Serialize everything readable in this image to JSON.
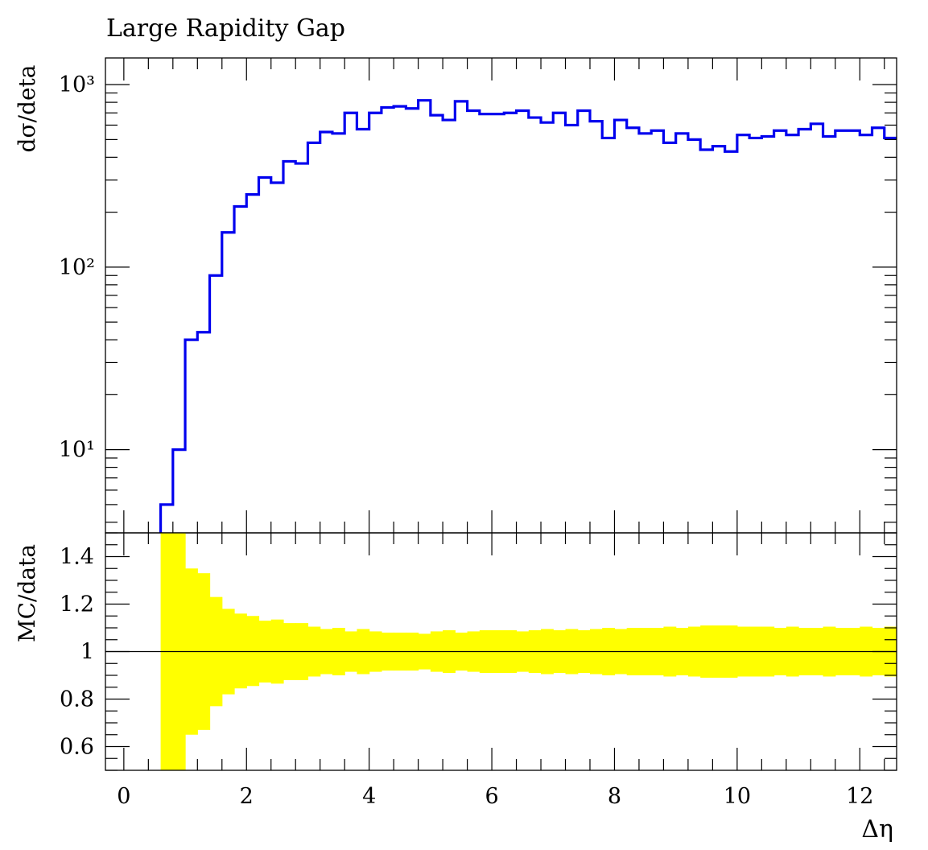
{
  "chart_data": {
    "type": "histogram",
    "title": "Large Rapidity Gap",
    "xlabel": "Δη",
    "ylabel": "dσ/deta",
    "ratio_ylabel": "MC/data",
    "x_ticks": [
      "0",
      "2",
      "4",
      "6",
      "8",
      "10",
      "12"
    ],
    "y_ticks": [
      "10¹",
      "10²",
      "10³"
    ],
    "ratio_ticks": [
      "0.6",
      "0.8",
      "1",
      "1.2",
      "1.4"
    ],
    "xlim": [
      -0.3,
      12.6
    ],
    "ylim": [
      3.5,
      1400
    ],
    "ratio_ylim": [
      0.5,
      1.5
    ],
    "yscale": "log",
    "bin_width": 0.2,
    "x_start": 0.6,
    "series": [
      {
        "color": "#0000ee",
        "values": [
          5,
          10,
          40,
          44,
          90,
          155,
          215,
          250,
          310,
          290,
          380,
          370,
          480,
          550,
          540,
          700,
          570,
          700,
          750,
          760,
          740,
          820,
          680,
          640,
          810,
          720,
          690,
          690,
          700,
          720,
          660,
          620,
          700,
          600,
          720,
          630,
          510,
          640,
          580,
          540,
          560,
          480,
          540,
          500,
          440,
          460,
          430,
          530,
          510,
          520,
          560,
          530,
          570,
          610,
          520,
          560,
          560,
          530,
          580,
          510
        ]
      }
    ],
    "ratio_band": {
      "color": "#ffff00",
      "upper": [
        1.5,
        1.5,
        1.35,
        1.33,
        1.23,
        1.18,
        1.16,
        1.15,
        1.13,
        1.135,
        1.12,
        1.12,
        1.105,
        1.095,
        1.1,
        1.085,
        1.095,
        1.085,
        1.08,
        1.08,
        1.08,
        1.075,
        1.085,
        1.09,
        1.08,
        1.085,
        1.09,
        1.09,
        1.09,
        1.085,
        1.09,
        1.095,
        1.09,
        1.095,
        1.09,
        1.095,
        1.1,
        1.095,
        1.1,
        1.1,
        1.1,
        1.105,
        1.1,
        1.105,
        1.11,
        1.11,
        1.11,
        1.105,
        1.105,
        1.105,
        1.1,
        1.105,
        1.1,
        1.1,
        1.105,
        1.1,
        1.1,
        1.105,
        1.1,
        1.105
      ],
      "lower": [
        0.5,
        0.5,
        0.65,
        0.67,
        0.77,
        0.82,
        0.845,
        0.855,
        0.87,
        0.865,
        0.88,
        0.88,
        0.895,
        0.905,
        0.9,
        0.915,
        0.905,
        0.915,
        0.92,
        0.92,
        0.92,
        0.925,
        0.915,
        0.91,
        0.92,
        0.915,
        0.91,
        0.91,
        0.91,
        0.915,
        0.91,
        0.905,
        0.91,
        0.905,
        0.91,
        0.905,
        0.9,
        0.905,
        0.9,
        0.9,
        0.9,
        0.895,
        0.9,
        0.895,
        0.89,
        0.89,
        0.89,
        0.895,
        0.895,
        0.895,
        0.9,
        0.895,
        0.9,
        0.9,
        0.895,
        0.9,
        0.9,
        0.895,
        0.9,
        0.895
      ]
    },
    "reference_line": 1.0
  }
}
